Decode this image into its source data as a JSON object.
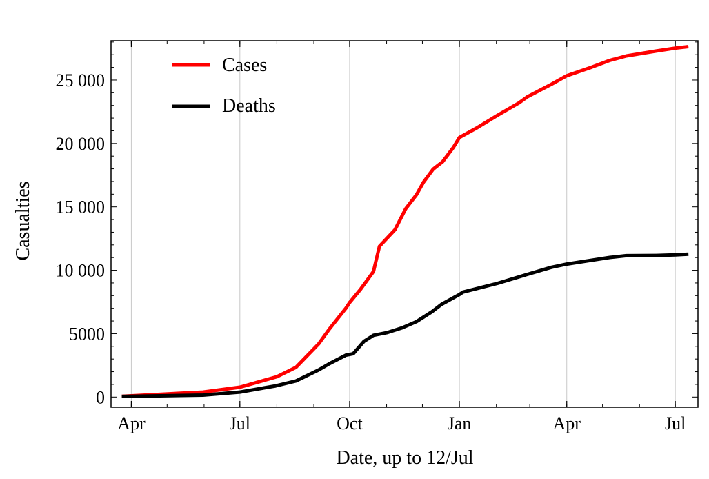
{
  "chart_data": {
    "type": "line",
    "title": "",
    "xlabel": "Date, up to 12/Jul",
    "ylabel": "Casualties",
    "xlim": [
      "2014-03-15",
      "2015-07-20"
    ],
    "ylim": [
      -800,
      28100
    ],
    "grid": {
      "x": true,
      "y": false
    },
    "legend_position": "top-left",
    "x_ticks": [
      {
        "date": "2014-04-01",
        "label": "Apr"
      },
      {
        "date": "2014-07-01",
        "label": "Jul"
      },
      {
        "date": "2014-10-01",
        "label": "Oct"
      },
      {
        "date": "2015-01-01",
        "label": "Jan"
      },
      {
        "date": "2015-04-01",
        "label": "Apr"
      },
      {
        "date": "2015-07-01",
        "label": "Jul"
      }
    ],
    "y_ticks": [
      {
        "value": 0,
        "label": "0"
      },
      {
        "value": 5000,
        "label": "5000"
      },
      {
        "value": 10000,
        "label": "10 000"
      },
      {
        "value": 15000,
        "label": "15 000"
      },
      {
        "value": 20000,
        "label": "20 000"
      },
      {
        "value": 25000,
        "label": "25 000"
      }
    ],
    "series": [
      {
        "name": "Cases",
        "color": "#ff0000",
        "points": [
          [
            "2014-03-24",
            60
          ],
          [
            "2014-05-31",
            390
          ],
          [
            "2014-07-01",
            780
          ],
          [
            "2014-08-01",
            1600
          ],
          [
            "2014-08-17",
            2340
          ],
          [
            "2014-09-05",
            4190
          ],
          [
            "2014-09-14",
            5360
          ],
          [
            "2014-09-28",
            7020
          ],
          [
            "2014-10-01",
            7450
          ],
          [
            "2014-10-10",
            8480
          ],
          [
            "2014-10-21",
            9900
          ],
          [
            "2014-10-26",
            11890
          ],
          [
            "2014-11-08",
            13200
          ],
          [
            "2014-11-17",
            14850
          ],
          [
            "2014-11-26",
            15950
          ],
          [
            "2014-12-02",
            16960
          ],
          [
            "2014-12-10",
            17970
          ],
          [
            "2014-12-18",
            18560
          ],
          [
            "2014-12-27",
            19690
          ],
          [
            "2015-01-01",
            20470
          ],
          [
            "2015-01-16",
            21250
          ],
          [
            "2015-02-02",
            22220
          ],
          [
            "2015-02-20",
            23200
          ],
          [
            "2015-02-27",
            23680
          ],
          [
            "2015-03-19",
            24660
          ],
          [
            "2015-04-01",
            25340
          ],
          [
            "2015-04-22",
            26020
          ],
          [
            "2015-05-07",
            26550
          ],
          [
            "2015-05-21",
            26900
          ],
          [
            "2015-06-15",
            27290
          ],
          [
            "2015-07-01",
            27520
          ],
          [
            "2015-07-12",
            27640
          ]
        ]
      },
      {
        "name": "Deaths",
        "color": "#000000",
        "points": [
          [
            "2014-03-24",
            50
          ],
          [
            "2014-05-31",
            150
          ],
          [
            "2014-07-01",
            390
          ],
          [
            "2014-07-31",
            880
          ],
          [
            "2014-08-17",
            1270
          ],
          [
            "2014-09-05",
            2140
          ],
          [
            "2014-09-14",
            2630
          ],
          [
            "2014-09-28",
            3310
          ],
          [
            "2014-10-04",
            3410
          ],
          [
            "2014-10-13",
            4390
          ],
          [
            "2014-10-21",
            4870
          ],
          [
            "2014-11-01",
            5070
          ],
          [
            "2014-11-14",
            5460
          ],
          [
            "2014-11-26",
            5950
          ],
          [
            "2014-12-09",
            6730
          ],
          [
            "2014-12-17",
            7310
          ],
          [
            "2015-01-01",
            8090
          ],
          [
            "2015-01-04",
            8280
          ],
          [
            "2015-02-02",
            8970
          ],
          [
            "2015-02-26",
            9650
          ],
          [
            "2015-03-19",
            10230
          ],
          [
            "2015-04-01",
            10490
          ],
          [
            "2015-05-07",
            11010
          ],
          [
            "2015-05-21",
            11150
          ],
          [
            "2015-06-15",
            11170
          ],
          [
            "2015-07-01",
            11210
          ],
          [
            "2015-07-12",
            11270
          ]
        ]
      }
    ]
  }
}
